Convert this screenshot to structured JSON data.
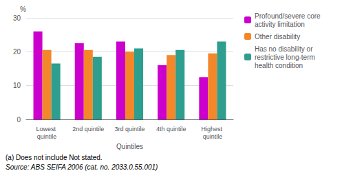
{
  "chart_data": {
    "type": "bar",
    "categories": [
      "Lowest quintile",
      "2nd quintile",
      "3rd quintile",
      "4th quintile",
      "Highest quintile"
    ],
    "series": [
      {
        "name": "Profound/severe core activity limitation",
        "color": "#CC00CC",
        "values": [
          26.0,
          22.5,
          23.0,
          16.0,
          12.5
        ]
      },
      {
        "name": "Other disability",
        "color": "#F4872A",
        "values": [
          20.5,
          20.5,
          20.0,
          19.0,
          19.5
        ]
      },
      {
        "name": "Has no disability or restrictive long-term health condition",
        "color": "#2E9E8E",
        "values": [
          16.5,
          18.5,
          21.0,
          20.5,
          23.0
        ]
      }
    ],
    "xlabel": "Quintiles",
    "ylabel": "%",
    "annotations": [
      "(a) Does not include Not stated.",
      "Source: ABS SEIFA 2006 (cat. no. 2033.0.55.001)"
    ],
    "ylim": [
      0,
      30
    ],
    "yticks": [
      0,
      10,
      20,
      30
    ],
    "grid": true,
    "legend": "upper right"
  }
}
